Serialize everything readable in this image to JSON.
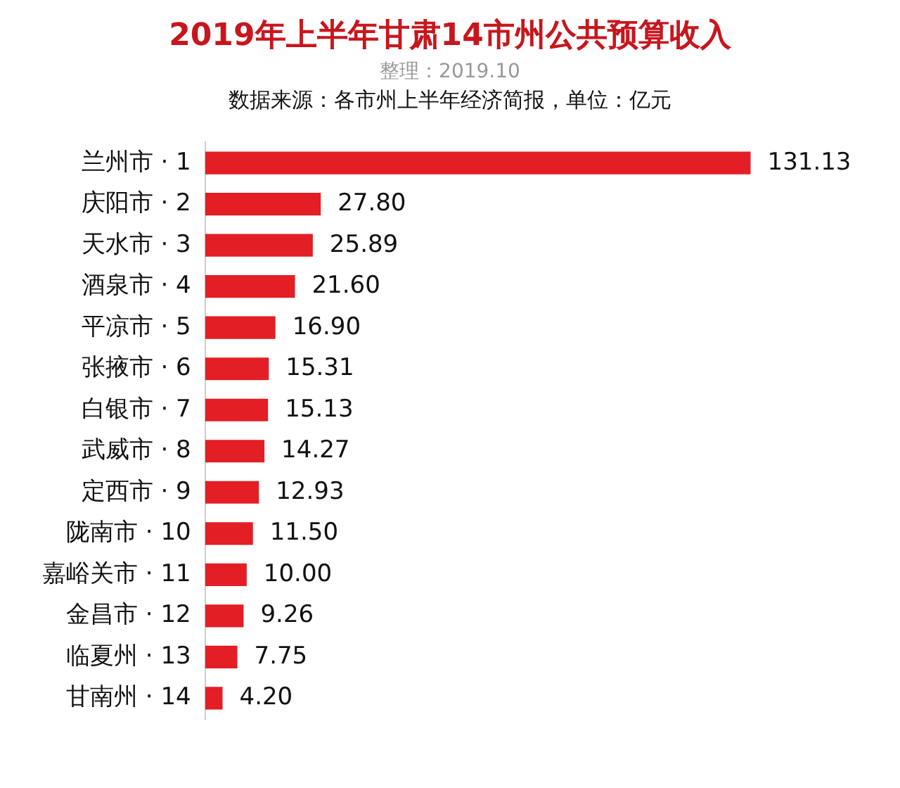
{
  "chart_data": {
    "type": "bar",
    "orientation": "horizontal",
    "title": "2019年上半年甘肃14市州公共预算收入",
    "subtitle": "整理：2019.10",
    "annotations": [
      "数据来源：各市州上半年经济简报，单位：亿元"
    ],
    "categories": [
      "兰州市 · 1",
      "庆阳市 · 2",
      "天水市 · 3",
      "酒泉市 · 4",
      "平凉市 · 5",
      "张掖市 · 6",
      "白银市 · 7",
      "武威市 · 8",
      "定西市 · 9",
      "陇南市 · 10",
      "嘉峪关市 · 11",
      "金昌市 · 12",
      "临夏州 · 13",
      "甘南州 · 14"
    ],
    "values": [
      131.13,
      27.8,
      25.89,
      21.6,
      16.9,
      15.31,
      15.13,
      14.27,
      12.93,
      11.5,
      10.0,
      9.26,
      7.75,
      4.2
    ],
    "value_labels": [
      "131.13",
      "27.80",
      "25.89",
      "21.60",
      "16.90",
      "15.31",
      "15.13",
      "14.27",
      "12.93",
      "11.50",
      "10.00",
      "9.26",
      "7.75",
      "4.20"
    ],
    "color": "#e31e24",
    "tick_labels": "y",
    "grid": false,
    "legend": false
  }
}
